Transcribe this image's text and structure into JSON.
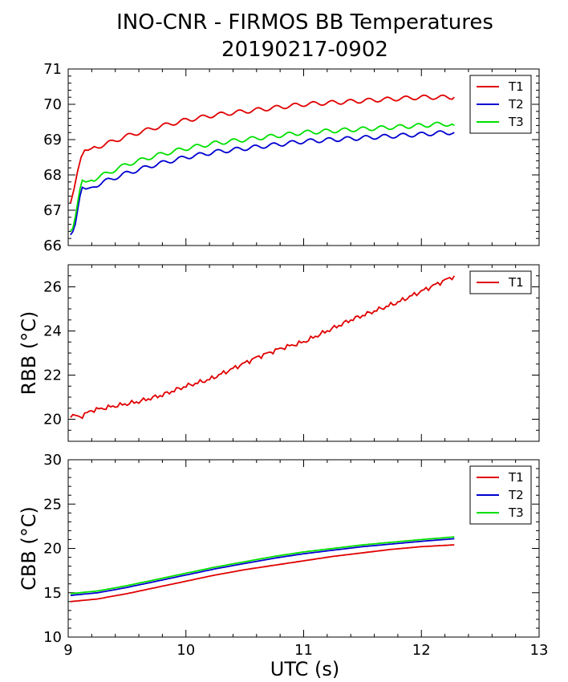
{
  "title": "INO-CNR - FIRMOS BB Temperatures",
  "subtitle": "20190217-0902",
  "x_axis": {
    "label": "UTC (s)",
    "ticks": [
      "9",
      "10",
      "11",
      "12",
      "13"
    ],
    "range": [
      9,
      13
    ]
  },
  "colors": {
    "T1": "#e00000",
    "T2": "#0000d0",
    "T3": "#00e000"
  },
  "chart_data": [
    {
      "type": "line",
      "panel": "top",
      "ylabel": "",
      "ylim": [
        66,
        71
      ],
      "yticks": [
        "66",
        "67",
        "68",
        "69",
        "70",
        "71"
      ],
      "legend_position": "top-right",
      "series": [
        {
          "name": "T1",
          "color": "#e00000",
          "x": [
            9.02,
            9.05,
            9.08,
            9.11,
            9.14,
            9.17,
            9.2,
            9.3,
            9.5,
            9.75,
            10,
            10.25,
            10.5,
            10.75,
            11,
            11.25,
            11.5,
            11.75,
            12,
            12.2,
            12.28
          ],
          "y": [
            67.2,
            67.6,
            68.1,
            68.5,
            68.7,
            68.7,
            68.75,
            68.85,
            69.1,
            69.35,
            69.55,
            69.7,
            69.8,
            69.9,
            70.0,
            70.05,
            70.1,
            70.15,
            70.2,
            70.2,
            70.2
          ]
        },
        {
          "name": "T2",
          "color": "#0000d0",
          "x": [
            9.02,
            9.04,
            9.06,
            9.08,
            9.1,
            9.12,
            9.15,
            9.2,
            9.3,
            9.5,
            9.75,
            10,
            10.25,
            10.5,
            10.75,
            11,
            11.25,
            11.5,
            11.75,
            12,
            12.2,
            12.28
          ],
          "y": [
            66.3,
            66.4,
            66.6,
            67.0,
            67.4,
            67.65,
            67.6,
            67.65,
            67.8,
            68.05,
            68.3,
            68.5,
            68.65,
            68.75,
            68.85,
            68.95,
            69.0,
            69.05,
            69.1,
            69.15,
            69.2,
            69.2
          ]
        },
        {
          "name": "T3",
          "color": "#00e000",
          "x": [
            9.02,
            9.04,
            9.06,
            9.08,
            9.1,
            9.12,
            9.15,
            9.2,
            9.3,
            9.5,
            9.75,
            10,
            10.25,
            10.5,
            10.75,
            11,
            11.25,
            11.5,
            11.75,
            12,
            12.2,
            12.28
          ],
          "y": [
            66.4,
            66.5,
            66.8,
            67.2,
            67.6,
            67.85,
            67.8,
            67.85,
            68.0,
            68.3,
            68.55,
            68.75,
            68.9,
            69.0,
            69.1,
            69.2,
            69.25,
            69.3,
            69.35,
            69.4,
            69.45,
            69.4
          ]
        }
      ]
    },
    {
      "type": "line",
      "panel": "middle",
      "ylabel": "RBB (°C)",
      "ylim": [
        19,
        27
      ],
      "yticks": [
        "20",
        "22",
        "24",
        "26"
      ],
      "legend_position": "top-right",
      "series": [
        {
          "name": "T1",
          "color": "#e00000",
          "x": [
            9.02,
            9.1,
            9.2,
            9.4,
            9.6,
            9.8,
            10,
            10.2,
            10.4,
            10.6,
            10.8,
            11,
            11.2,
            11.4,
            11.6,
            11.8,
            12,
            12.2,
            12.28
          ],
          "y": [
            20.2,
            20.1,
            20.4,
            20.6,
            20.8,
            21.1,
            21.5,
            21.8,
            22.3,
            22.8,
            23.2,
            23.5,
            24.0,
            24.5,
            24.9,
            25.3,
            25.8,
            26.3,
            26.5
          ]
        }
      ]
    },
    {
      "type": "line",
      "panel": "bottom",
      "ylabel": "CBB (°C)",
      "ylim": [
        10,
        30
      ],
      "yticks": [
        "10",
        "15",
        "20",
        "25",
        "30"
      ],
      "legend_position": "top-right",
      "series": [
        {
          "name": "T1",
          "color": "#e00000",
          "x": [
            9.02,
            9.25,
            9.5,
            9.75,
            10,
            10.25,
            10.5,
            10.75,
            11,
            11.25,
            11.5,
            11.75,
            12,
            12.28
          ],
          "y": [
            14.0,
            14.3,
            14.9,
            15.6,
            16.3,
            17.0,
            17.6,
            18.1,
            18.6,
            19.1,
            19.5,
            19.9,
            20.2,
            20.4
          ]
        },
        {
          "name": "T2",
          "color": "#0000d0",
          "x": [
            9.02,
            9.25,
            9.5,
            9.75,
            10,
            10.25,
            10.5,
            10.75,
            11,
            11.25,
            11.5,
            11.75,
            12,
            12.28
          ],
          "y": [
            14.7,
            15.0,
            15.6,
            16.3,
            17.0,
            17.7,
            18.3,
            18.9,
            19.4,
            19.8,
            20.2,
            20.5,
            20.8,
            21.1
          ]
        },
        {
          "name": "T3",
          "color": "#00e000",
          "x": [
            9.02,
            9.25,
            9.5,
            9.75,
            10,
            10.25,
            10.5,
            10.75,
            11,
            11.25,
            11.5,
            11.75,
            12,
            12.28
          ],
          "y": [
            14.9,
            15.2,
            15.8,
            16.5,
            17.2,
            17.9,
            18.5,
            19.1,
            19.6,
            20.0,
            20.4,
            20.7,
            21.0,
            21.3
          ]
        }
      ]
    }
  ]
}
